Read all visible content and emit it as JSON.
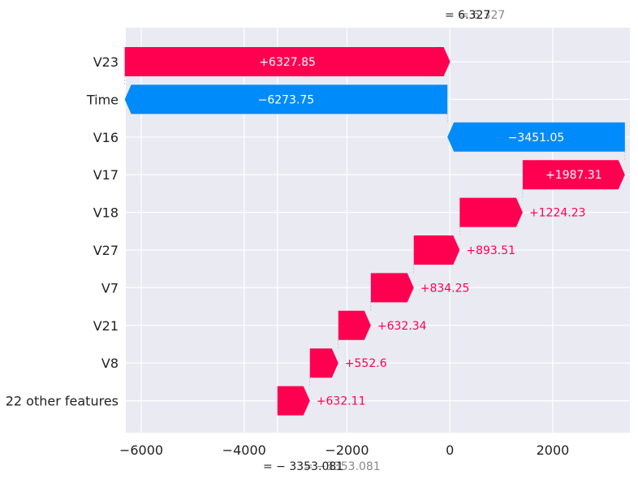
{
  "chart_data": {
    "type": "waterfall",
    "features": [
      "V23",
      "Time",
      "V16",
      "V17",
      "V18",
      "V27",
      "V7",
      "V21",
      "V8",
      "22 other features"
    ],
    "contributions": [
      6327.85,
      -6273.75,
      -3451.05,
      1987.31,
      1224.23,
      893.51,
      834.25,
      632.34,
      552.6,
      632.11
    ],
    "bar_labels": [
      "+6327.85",
      "−6273.75",
      "−3451.05",
      "+1987.31",
      "+1224.23",
      "+893.51",
      "+834.25",
      "+632.34",
      "+552.6",
      "+632.11"
    ],
    "base_value_label": "= − 3353.081",
    "base_value_ghost": "= −3353.081",
    "output_value_label": "= 6.327",
    "output_value_ghost": "= 6.327",
    "xlim": [
      -6300,
      3500
    ],
    "xticks": [
      -6000,
      -4000,
      -2000,
      0,
      2000
    ],
    "xtick_labels": [
      "−6000",
      "−4000",
      "−2000",
      "0",
      "2000"
    ],
    "grid": true,
    "colors": {
      "positive": "#ff0051",
      "negative": "#008bfb",
      "background": "#eaeaf2",
      "grid": "#ffffff"
    }
  }
}
